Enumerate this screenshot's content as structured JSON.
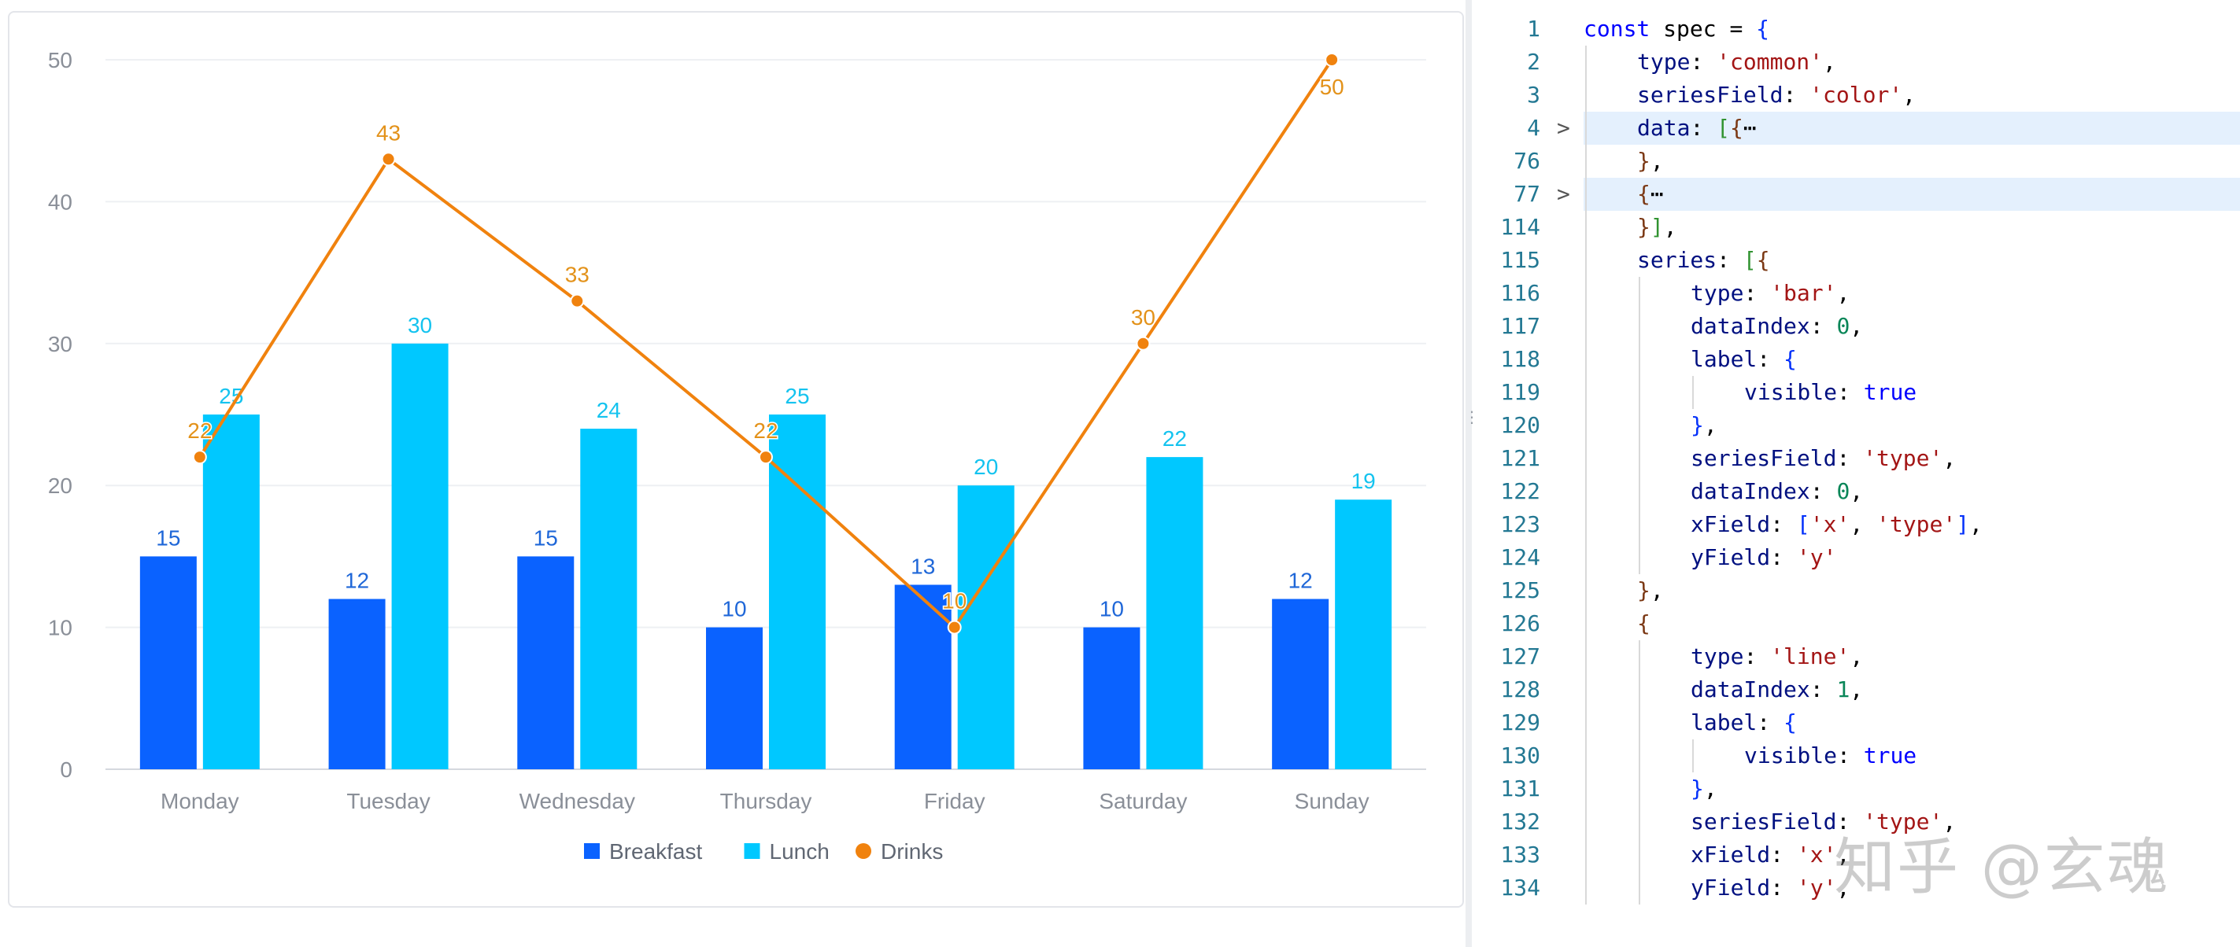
{
  "chart_data": {
    "type": "bar",
    "categories": [
      "Monday",
      "Tuesday",
      "Wednesday",
      "Thursday",
      "Friday",
      "Saturday",
      "Sunday"
    ],
    "ylim": [
      0,
      50
    ],
    "yticks": [
      "0",
      "10",
      "20",
      "30",
      "40",
      "50"
    ],
    "grid": true,
    "legend_position": "bottom",
    "series": [
      {
        "name": "Breakfast",
        "type": "bar",
        "color": "#0a62ff",
        "values": [
          15,
          12,
          15,
          10,
          13,
          10,
          12
        ]
      },
      {
        "name": "Lunch",
        "type": "bar",
        "color": "#00c8ff",
        "values": [
          25,
          30,
          24,
          25,
          20,
          22,
          19
        ]
      },
      {
        "name": "Drinks",
        "type": "line",
        "color": "#f0820e",
        "values": [
          22,
          43,
          33,
          22,
          10,
          30,
          50
        ]
      }
    ],
    "label_colors": {
      "Breakfast": "#1f67d8",
      "Lunch": "#14c3ef",
      "Drinks": "#e3921a"
    }
  },
  "editor": {
    "lines": [
      {
        "n": "1",
        "indent": 0,
        "tokens": [
          [
            "kw",
            "const"
          ],
          [
            "txt",
            " spec = "
          ],
          [
            "br1",
            "{"
          ]
        ]
      },
      {
        "n": "2",
        "indent": 1,
        "tokens": [
          [
            "prop",
            "type"
          ],
          [
            "txt",
            ": "
          ],
          [
            "str",
            "'common'"
          ],
          [
            "txt",
            ","
          ]
        ]
      },
      {
        "n": "3",
        "indent": 1,
        "tokens": [
          [
            "prop",
            "seriesField"
          ],
          [
            "txt",
            ": "
          ],
          [
            "str",
            "'color'"
          ],
          [
            "txt",
            ","
          ]
        ]
      },
      {
        "n": "4",
        "indent": 1,
        "fold": ">",
        "hl": true,
        "tokens": [
          [
            "prop",
            "data"
          ],
          [
            "txt",
            ": "
          ],
          [
            "br2",
            "["
          ],
          [
            "br3",
            "{"
          ],
          [
            "txt",
            "⋯"
          ]
        ]
      },
      {
        "n": "76",
        "indent": 1,
        "tokens": [
          [
            "br3",
            "}"
          ],
          [
            "txt",
            ","
          ]
        ]
      },
      {
        "n": "77",
        "indent": 1,
        "fold": ">",
        "hl": true,
        "tokens": [
          [
            "br3",
            "{"
          ],
          [
            "txt",
            "⋯"
          ]
        ]
      },
      {
        "n": "114",
        "indent": 1,
        "tokens": [
          [
            "br3",
            "}"
          ],
          [
            "br2",
            "]"
          ],
          [
            "txt",
            ","
          ]
        ]
      },
      {
        "n": "115",
        "indent": 1,
        "tokens": [
          [
            "prop",
            "series"
          ],
          [
            "txt",
            ": "
          ],
          [
            "br2",
            "["
          ],
          [
            "br3",
            "{"
          ]
        ]
      },
      {
        "n": "116",
        "indent": 2,
        "tokens": [
          [
            "prop",
            "type"
          ],
          [
            "txt",
            ": "
          ],
          [
            "str",
            "'bar'"
          ],
          [
            "txt",
            ","
          ]
        ]
      },
      {
        "n": "117",
        "indent": 2,
        "tokens": [
          [
            "prop",
            "dataIndex"
          ],
          [
            "txt",
            ": "
          ],
          [
            "num",
            "0"
          ],
          [
            "txt",
            ","
          ]
        ]
      },
      {
        "n": "118",
        "indent": 2,
        "tokens": [
          [
            "prop",
            "label"
          ],
          [
            "txt",
            ": "
          ],
          [
            "br1",
            "{"
          ]
        ]
      },
      {
        "n": "119",
        "indent": 3,
        "tokens": [
          [
            "prop",
            "visible"
          ],
          [
            "txt",
            ": "
          ],
          [
            "kw",
            "true"
          ]
        ]
      },
      {
        "n": "120",
        "indent": 2,
        "tokens": [
          [
            "br1",
            "}"
          ],
          [
            "txt",
            ","
          ]
        ]
      },
      {
        "n": "121",
        "indent": 2,
        "tokens": [
          [
            "prop",
            "seriesField"
          ],
          [
            "txt",
            ": "
          ],
          [
            "str",
            "'type'"
          ],
          [
            "txt",
            ","
          ]
        ]
      },
      {
        "n": "122",
        "indent": 2,
        "tokens": [
          [
            "prop",
            "dataIndex"
          ],
          [
            "txt",
            ": "
          ],
          [
            "num",
            "0"
          ],
          [
            "txt",
            ","
          ]
        ]
      },
      {
        "n": "123",
        "indent": 2,
        "tokens": [
          [
            "prop",
            "xField"
          ],
          [
            "txt",
            ": "
          ],
          [
            "br1",
            "["
          ],
          [
            "str",
            "'x'"
          ],
          [
            "txt",
            ", "
          ],
          [
            "str",
            "'type'"
          ],
          [
            "br1",
            "]"
          ],
          [
            "txt",
            ","
          ]
        ]
      },
      {
        "n": "124",
        "indent": 2,
        "tokens": [
          [
            "prop",
            "yField"
          ],
          [
            "txt",
            ": "
          ],
          [
            "str",
            "'y'"
          ]
        ]
      },
      {
        "n": "125",
        "indent": 1,
        "tokens": [
          [
            "br3",
            "}"
          ],
          [
            "txt",
            ","
          ]
        ]
      },
      {
        "n": "126",
        "indent": 1,
        "tokens": [
          [
            "br3",
            "{"
          ]
        ]
      },
      {
        "n": "127",
        "indent": 2,
        "tokens": [
          [
            "prop",
            "type"
          ],
          [
            "txt",
            ": "
          ],
          [
            "str",
            "'line'"
          ],
          [
            "txt",
            ","
          ]
        ]
      },
      {
        "n": "128",
        "indent": 2,
        "tokens": [
          [
            "prop",
            "dataIndex"
          ],
          [
            "txt",
            ": "
          ],
          [
            "num",
            "1"
          ],
          [
            "txt",
            ","
          ]
        ]
      },
      {
        "n": "129",
        "indent": 2,
        "tokens": [
          [
            "prop",
            "label"
          ],
          [
            "txt",
            ": "
          ],
          [
            "br1",
            "{"
          ]
        ]
      },
      {
        "n": "130",
        "indent": 3,
        "tokens": [
          [
            "prop",
            "visible"
          ],
          [
            "txt",
            ": "
          ],
          [
            "kw",
            "true"
          ]
        ]
      },
      {
        "n": "131",
        "indent": 2,
        "tokens": [
          [
            "br1",
            "}"
          ],
          [
            "txt",
            ","
          ]
        ]
      },
      {
        "n": "132",
        "indent": 2,
        "tokens": [
          [
            "prop",
            "seriesField"
          ],
          [
            "txt",
            ": "
          ],
          [
            "str",
            "'type'"
          ],
          [
            "txt",
            ","
          ]
        ]
      },
      {
        "n": "133",
        "indent": 2,
        "tokens": [
          [
            "prop",
            "xField"
          ],
          [
            "txt",
            ": "
          ],
          [
            "str",
            "'x'"
          ],
          [
            "txt",
            ","
          ]
        ]
      },
      {
        "n": "134",
        "indent": 2,
        "tokens": [
          [
            "prop",
            "yField"
          ],
          [
            "txt",
            ": "
          ],
          [
            "str",
            "'y'"
          ],
          [
            "txt",
            ","
          ]
        ]
      }
    ]
  },
  "watermark": "知乎 @玄魂"
}
